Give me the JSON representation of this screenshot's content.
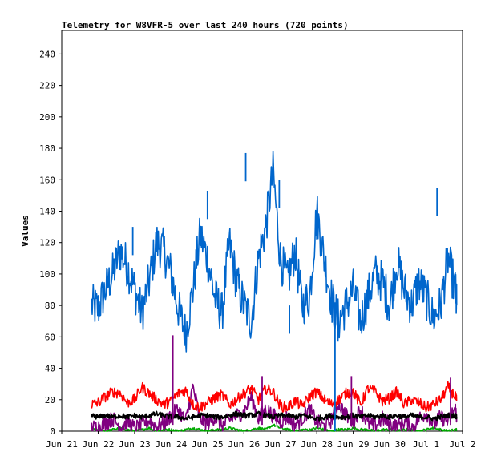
{
  "chart_data": {
    "type": "line",
    "title": "Telemetry for W8VFR-5 over last 240 hours (720 points)",
    "xlabel": "",
    "ylabel": "Values",
    "ylim": [
      0,
      255
    ],
    "yticks": [
      0,
      20,
      40,
      60,
      80,
      100,
      120,
      140,
      160,
      180,
      200,
      220,
      240
    ],
    "xlim": [
      0,
      11
    ],
    "xtick_labels": [
      "Jun 21",
      "Jun 22",
      "Jun 23",
      "Jun 24",
      "Jun 25",
      "Jun 26",
      "Jun 27",
      "Jun 28",
      "Jun 29",
      "Jun 30",
      "Jul 1",
      "Jul 2"
    ],
    "x_unit": "days since Jun 21 00:00",
    "grid": false,
    "legend": "none",
    "series": [
      {
        "color": "#0066cc",
        "x": [
          0.82,
          1.0,
          1.2,
          1.4,
          1.6,
          1.8,
          2.0,
          2.2,
          2.4,
          2.6,
          2.8,
          3.0,
          3.2,
          3.4,
          3.6,
          3.8,
          4.0,
          4.2,
          4.4,
          4.6,
          4.8,
          5.0,
          5.2,
          5.4,
          5.6,
          5.8,
          6.0,
          6.2,
          6.4,
          6.6,
          6.8,
          7.0,
          7.2,
          7.4,
          7.6,
          7.8,
          8.0,
          8.2,
          8.4,
          8.6,
          8.8,
          9.0,
          9.2,
          9.4,
          9.6,
          9.8,
          10.0,
          10.2,
          10.4,
          10.6,
          10.8,
          10.84
        ],
        "y": [
          80,
          78,
          90,
          100,
          115,
          105,
          90,
          75,
          95,
          120,
          115,
          100,
          78,
          62,
          90,
          125,
          110,
          85,
          75,
          120,
          95,
          80,
          70,
          110,
          130,
          165,
          110,
          95,
          115,
          80,
          85,
          140,
          110,
          85,
          70,
          80,
          90,
          70,
          85,
          100,
          95,
          80,
          108,
          90,
          80,
          95,
          85,
          72,
          80,
          110,
          90,
          80
        ]
      },
      {
        "color": "#ff0000",
        "x": [
          0.82,
          1.0,
          1.2,
          1.4,
          1.6,
          1.8,
          2.0,
          2.2,
          2.4,
          2.6,
          2.8,
          3.0,
          3.2,
          3.4,
          3.6,
          3.8,
          4.0,
          4.2,
          4.4,
          4.6,
          4.8,
          5.0,
          5.2,
          5.4,
          5.6,
          5.8,
          6.0,
          6.2,
          6.4,
          6.6,
          6.8,
          7.0,
          7.2,
          7.4,
          7.6,
          7.8,
          8.0,
          8.2,
          8.4,
          8.6,
          8.8,
          9.0,
          9.2,
          9.4,
          9.6,
          9.8,
          10.0,
          10.2,
          10.4,
          10.6,
          10.8,
          10.84
        ],
        "y": [
          17,
          18,
          22,
          25,
          24,
          18,
          20,
          28,
          24,
          20,
          17,
          19,
          24,
          26,
          17,
          15,
          18,
          21,
          23,
          17,
          20,
          24,
          27,
          20,
          27,
          25,
          16,
          15,
          19,
          16,
          22,
          25,
          20,
          17,
          20,
          24,
          25,
          17,
          27,
          25,
          19,
          21,
          25,
          17,
          20,
          18,
          15,
          17,
          20,
          28,
          22,
          19
        ]
      },
      {
        "color": "#000000",
        "x": [
          0.82,
          1.0,
          1.2,
          1.4,
          1.6,
          1.8,
          2.0,
          2.2,
          2.4,
          2.6,
          2.8,
          3.0,
          3.2,
          3.4,
          3.6,
          3.8,
          4.0,
          4.2,
          4.4,
          4.6,
          4.8,
          5.0,
          5.2,
          5.4,
          5.6,
          5.8,
          6.0,
          6.2,
          6.4,
          6.6,
          6.8,
          7.0,
          7.2,
          7.4,
          7.6,
          7.8,
          8.0,
          8.2,
          8.4,
          8.6,
          8.8,
          9.0,
          9.2,
          9.4,
          9.6,
          9.8,
          10.0,
          10.2,
          10.4,
          10.6,
          10.8,
          10.84
        ],
        "y": [
          10,
          9,
          10,
          9,
          10,
          9,
          10,
          9,
          10,
          11,
          10,
          9,
          9,
          8,
          9,
          10,
          10,
          9,
          9,
          10,
          11,
          10,
          10,
          11,
          10,
          9,
          10,
          10,
          9,
          10,
          9,
          8,
          9,
          10,
          9,
          9,
          10,
          9,
          10,
          9,
          10,
          9,
          10,
          9,
          10,
          9,
          9,
          8,
          9,
          10,
          10,
          9
        ]
      },
      {
        "color": "#800080",
        "x": [
          0.82,
          1.0,
          1.2,
          1.4,
          1.6,
          1.8,
          2.0,
          2.2,
          2.4,
          2.6,
          2.8,
          3.0,
          3.2,
          3.4,
          3.6,
          3.8,
          4.0,
          4.2,
          4.4,
          4.6,
          4.8,
          5.0,
          5.2,
          5.4,
          5.6,
          5.8,
          6.0,
          6.2,
          6.4,
          6.6,
          6.8,
          7.0,
          7.2,
          7.4,
          7.6,
          7.8,
          8.0,
          8.2,
          8.4,
          8.6,
          8.8,
          9.0,
          9.2,
          9.4,
          9.6,
          9.8,
          10.0,
          10.2,
          10.4,
          10.6,
          10.8,
          10.84
        ],
        "y": [
          2,
          3,
          5,
          8,
          3,
          6,
          2,
          4,
          7,
          3,
          5,
          10,
          14,
          6,
          28,
          8,
          5,
          9,
          4,
          7,
          10,
          12,
          22,
          8,
          14,
          10,
          6,
          9,
          4,
          8,
          14,
          6,
          3,
          7,
          18,
          10,
          6,
          14,
          5,
          3,
          8,
          5,
          3,
          6,
          2,
          8,
          12,
          4,
          9,
          6,
          15,
          8
        ]
      },
      {
        "color": "#00aa00",
        "x": [
          0.82,
          1.0,
          1.2,
          1.4,
          1.6,
          1.8,
          2.0,
          2.2,
          2.4,
          2.6,
          2.8,
          3.0,
          3.2,
          3.4,
          3.6,
          3.8,
          4.0,
          4.2,
          4.4,
          4.6,
          4.8,
          5.0,
          5.2,
          5.4,
          5.6,
          5.8,
          6.0,
          6.2,
          6.4,
          6.6,
          6.8,
          7.0,
          7.2,
          7.4,
          7.6,
          7.8,
          8.0,
          8.2,
          8.4,
          8.6,
          8.8,
          9.0,
          9.2,
          9.4,
          9.6,
          9.8,
          10.0,
          10.2,
          10.4,
          10.6,
          10.8,
          10.84
        ],
        "y": [
          1,
          1,
          0,
          1,
          2,
          1,
          0,
          1,
          2,
          0,
          1,
          1,
          0,
          1,
          2,
          1,
          0,
          1,
          1,
          2,
          1,
          0,
          1,
          2,
          1,
          4,
          2,
          1,
          0,
          1,
          1,
          2,
          1,
          0,
          1,
          1,
          2,
          1,
          1,
          0,
          1,
          1,
          0,
          1,
          1,
          0,
          1,
          2,
          1,
          0,
          1,
          1
        ]
      }
    ],
    "annotations": [
      {
        "color": "#0066cc",
        "x": [
          1.95,
          4.0,
          5.05,
          5.97,
          6.25,
          7.0,
          7.42,
          7.5,
          7.58,
          10.3
        ],
        "y": [
          130,
          153,
          177,
          160,
          80,
          140,
          87,
          0,
          75,
          155
        ]
      },
      {
        "color": "#800080",
        "x": [
          3.05,
          5.5,
          7.95,
          10.67
        ],
        "y": [
          61,
          35,
          35,
          34
        ]
      }
    ]
  }
}
